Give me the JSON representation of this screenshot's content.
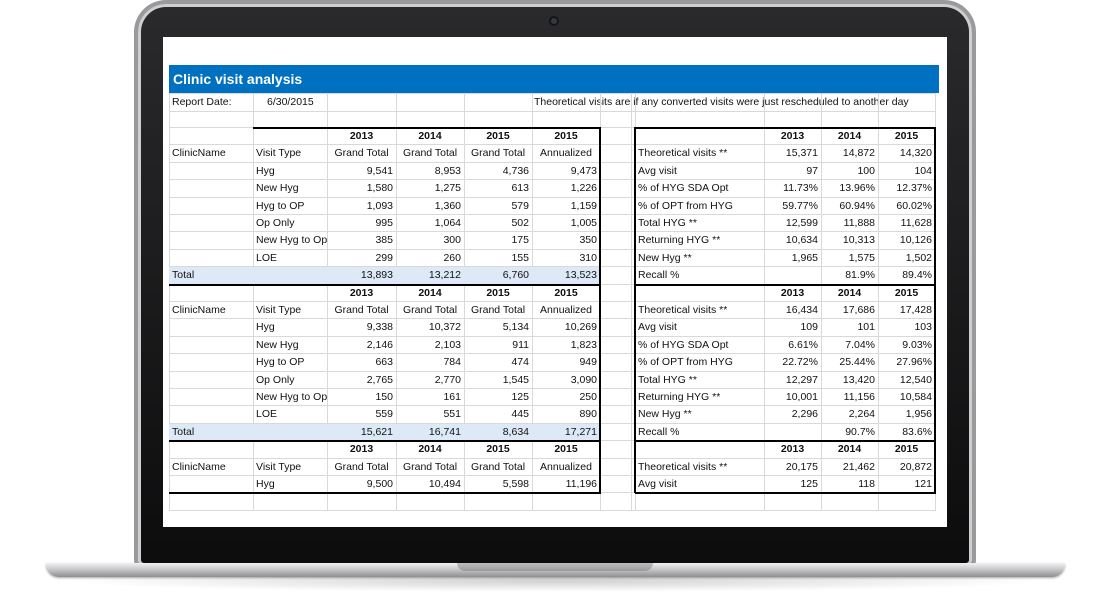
{
  "title": "Clinic visit analysis",
  "report": {
    "label": "Report Date:",
    "date": "6/30/2015",
    "note": "Theoretical visits are if any converted visits were just rescheduled to another day"
  },
  "labels": {
    "clinic_name": "ClinicName",
    "visit_type": "Visit Type",
    "total": "Total",
    "grand_total": "Grand Total",
    "annualized": "Annualized"
  },
  "years": [
    "2013",
    "2014",
    "2015",
    "2015"
  ],
  "right_years": [
    "2013",
    "2014",
    "2015"
  ],
  "sections": [
    {
      "rows": [
        [
          "Hyg",
          "9,541",
          "8,953",
          "4,736",
          "9,473"
        ],
        [
          "New Hyg",
          "1,580",
          "1,275",
          "613",
          "1,226"
        ],
        [
          "Hyg to OP",
          "1,093",
          "1,360",
          "579",
          "1,159"
        ],
        [
          "Op Only",
          "995",
          "1,064",
          "502",
          "1,005"
        ],
        [
          "New Hyg to Op",
          "385",
          "300",
          "175",
          "350"
        ],
        [
          "LOE",
          "299",
          "260",
          "155",
          "310"
        ]
      ],
      "total": [
        "13,893",
        "13,212",
        "6,760",
        "13,523"
      ],
      "metrics": [
        [
          "Theoretical visits **",
          "15,371",
          "14,872",
          "14,320"
        ],
        [
          "Avg visit",
          "97",
          "100",
          "104"
        ],
        [
          "% of HYG SDA Opt",
          "11.73%",
          "13.96%",
          "12.37%"
        ],
        [
          "% of OPT from HYG",
          "59.77%",
          "60.94%",
          "60.02%"
        ],
        [
          "Total HYG **",
          "12,599",
          "11,888",
          "11,628"
        ],
        [
          "Returning HYG **",
          "10,634",
          "10,313",
          "10,126"
        ],
        [
          "New Hyg **",
          "1,965",
          "1,575",
          "1,502"
        ],
        [
          "Recall %",
          "",
          "81.9%",
          "89.4%"
        ]
      ]
    },
    {
      "rows": [
        [
          "Hyg",
          "9,338",
          "10,372",
          "5,134",
          "10,269"
        ],
        [
          "New Hyg",
          "2,146",
          "2,103",
          "911",
          "1,823"
        ],
        [
          "Hyg to OP",
          "663",
          "784",
          "474",
          "949"
        ],
        [
          "Op Only",
          "2,765",
          "2,770",
          "1,545",
          "3,090"
        ],
        [
          "New Hyg to Op",
          "150",
          "161",
          "125",
          "250"
        ],
        [
          "LOE",
          "559",
          "551",
          "445",
          "890"
        ]
      ],
      "total": [
        "15,621",
        "16,741",
        "8,634",
        "17,271"
      ],
      "metrics": [
        [
          "Theoretical visits **",
          "16,434",
          "17,686",
          "17,428"
        ],
        [
          "Avg visit",
          "109",
          "101",
          "103"
        ],
        [
          "% of HYG SDA Opt",
          "6.61%",
          "7.04%",
          "9.03%"
        ],
        [
          "% of OPT from HYG",
          "22.72%",
          "25.44%",
          "27.96%"
        ],
        [
          "Total HYG **",
          "12,297",
          "13,420",
          "12,540"
        ],
        [
          "Returning HYG **",
          "10,001",
          "11,156",
          "10,584"
        ],
        [
          "New Hyg **",
          "2,296",
          "2,264",
          "1,956"
        ],
        [
          "Recall %",
          "",
          "90.7%",
          "83.6%"
        ]
      ]
    },
    {
      "rows": [
        [
          "Hyg",
          "9,500",
          "10,494",
          "5,598",
          "11,196"
        ]
      ],
      "metrics": [
        [
          "Theoretical visits **",
          "20,175",
          "21,462",
          "20,872"
        ],
        [
          "Avg visit",
          "125",
          "118",
          "121"
        ]
      ]
    }
  ]
}
